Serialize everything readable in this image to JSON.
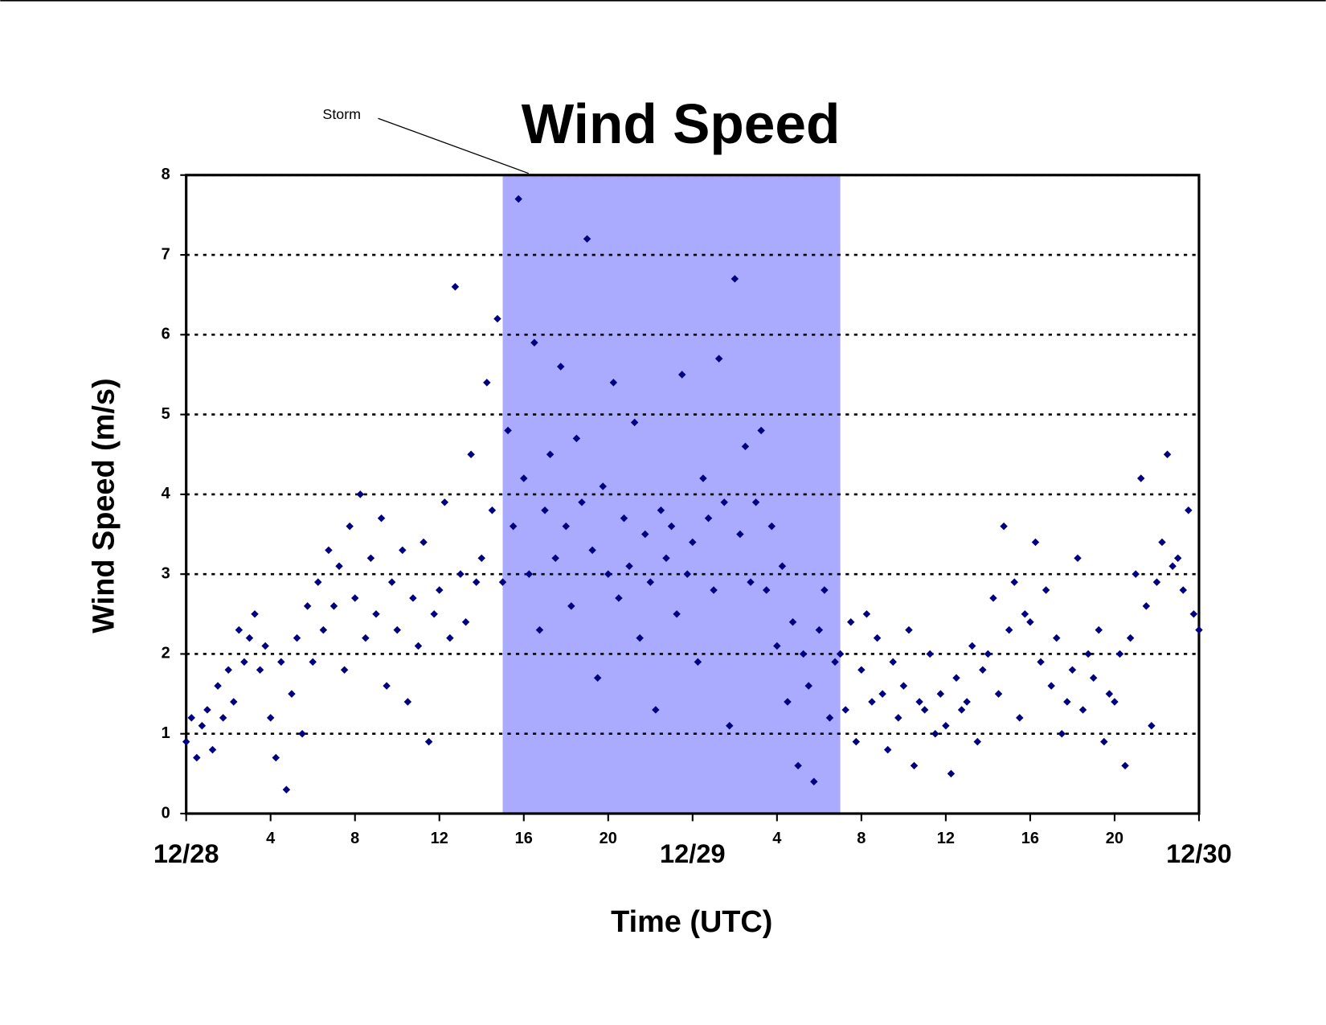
{
  "chart_data": {
    "type": "scatter",
    "title": "Wind Speed",
    "x_label": "Time (UTC)",
    "y_label": "Wind Speed (m/s)",
    "highlight": {
      "label": "Storm",
      "xlim": [
        15,
        31
      ],
      "color": "#aaaaff"
    },
    "color": "#000080",
    "xlim": [
      0,
      48
    ],
    "xticks": [
      {
        "value": 0,
        "label": "12/28"
      },
      4,
      8,
      12,
      16,
      20,
      {
        "value": 24,
        "label": "12/29"
      },
      {
        "value": 28,
        "label": "4"
      },
      {
        "value": 32,
        "label": "8"
      },
      {
        "value": 36,
        "label": "12"
      },
      {
        "value": 40,
        "label": "16"
      },
      {
        "value": 44,
        "label": "20"
      },
      {
        "value": 48,
        "label": "12/30"
      }
    ],
    "ylim": [
      0,
      8
    ],
    "yticks": [
      0,
      1,
      2,
      3,
      4,
      5,
      6,
      7,
      8
    ],
    "grid": true,
    "x": [
      0,
      0.25,
      0.5,
      0.75,
      1,
      1.25,
      1.5,
      1.75,
      2,
      2.25,
      2.5,
      2.75,
      3,
      3.25,
      3.5,
      3.75,
      4,
      4.25,
      4.5,
      4.75,
      5,
      5.25,
      5.5,
      5.75,
      6,
      6.25,
      6.5,
      6.75,
      7,
      7.25,
      7.5,
      7.75,
      8,
      8.25,
      8.5,
      8.75,
      9,
      9.25,
      9.5,
      9.75,
      10,
      10.25,
      10.5,
      10.75,
      11,
      11.25,
      11.5,
      11.75,
      12,
      12.25,
      12.5,
      12.75,
      13,
      13.25,
      13.5,
      13.75,
      14,
      14.25,
      14.5,
      14.75,
      15,
      15.25,
      15.5,
      15.75,
      16,
      16.25,
      16.5,
      16.75,
      17,
      17.25,
      17.5,
      17.75,
      18,
      18.25,
      18.5,
      18.75,
      19,
      19.25,
      19.5,
      19.75,
      20,
      20.25,
      20.5,
      20.75,
      21,
      21.25,
      21.5,
      21.75,
      22,
      22.25,
      22.5,
      22.75,
      23,
      23.25,
      23.5,
      23.75,
      24,
      24.25,
      24.5,
      24.75,
      25,
      25.25,
      25.5,
      25.75,
      26,
      26.25,
      26.5,
      26.75,
      27,
      27.25,
      27.5,
      27.75,
      28,
      28.25,
      28.5,
      28.75,
      29,
      29.25,
      29.5,
      29.75,
      30,
      30.25,
      30.5,
      30.75,
      31,
      31.25,
      31.5,
      31.75,
      32,
      32.25,
      32.5,
      32.75,
      33,
      33.25,
      33.5,
      33.75,
      34,
      34.25,
      34.5,
      34.75,
      35,
      35.25,
      35.5,
      35.75,
      36,
      36.25,
      36.5,
      36.75,
      37,
      37.25,
      37.5,
      37.75,
      38,
      38.25,
      38.5,
      38.75,
      39,
      39.25,
      39.5,
      39.75,
      40,
      40.25,
      40.5,
      40.75,
      41,
      41.25,
      41.5,
      41.75,
      42,
      42.25,
      42.5,
      42.75,
      43,
      43.25,
      43.5,
      43.75,
      44,
      44.25,
      44.5,
      44.75,
      45,
      45.25,
      45.5,
      45.75,
      46,
      46.25,
      46.5,
      46.75,
      47,
      47.25,
      47.5,
      47.75,
      48
    ],
    "values": [
      0.9,
      1.2,
      0.7,
      1.1,
      1.3,
      0.8,
      1.6,
      1.2,
      1.8,
      1.4,
      2.3,
      1.9,
      2.2,
      2.5,
      1.8,
      2.1,
      1.2,
      0.7,
      1.9,
      0.3,
      1.5,
      2.2,
      1.0,
      2.6,
      1.9,
      2.9,
      2.3,
      3.3,
      2.6,
      3.1,
      1.8,
      3.6,
      2.7,
      4.0,
      2.2,
      3.2,
      2.5,
      3.7,
      1.6,
      2.9,
      2.3,
      3.3,
      1.4,
      2.7,
      2.1,
      3.4,
      0.9,
      2.5,
      2.8,
      3.9,
      2.2,
      6.6,
      3.0,
      2.4,
      4.5,
      2.9,
      3.2,
      5.4,
      3.8,
      6.2,
      2.9,
      4.8,
      3.6,
      7.7,
      4.2,
      3.0,
      5.9,
      2.3,
      3.8,
      4.5,
      3.2,
      5.6,
      3.6,
      2.6,
      4.7,
      3.9,
      7.2,
      3.3,
      1.7,
      4.1,
      3.0,
      5.4,
      2.7,
      3.7,
      3.1,
      4.9,
      2.2,
      3.5,
      2.9,
      1.3,
      3.8,
      3.2,
      3.6,
      2.5,
      5.5,
      3.0,
      3.4,
      1.9,
      4.2,
      3.7,
      2.8,
      5.7,
      3.9,
      1.1,
      6.7,
      3.5,
      4.6,
      2.9,
      3.9,
      4.8,
      2.8,
      3.6,
      2.1,
      3.1,
      1.4,
      2.4,
      0.6,
      2.0,
      1.6,
      0.4,
      2.3,
      2.8,
      1.2,
      1.9,
      2.0,
      1.3,
      2.4,
      0.9,
      1.8,
      2.5,
      1.4,
      2.2,
      1.5,
      0.8,
      1.9,
      1.2,
      1.6,
      2.3,
      0.6,
      1.4,
      1.3,
      2.0,
      1.0,
      1.5,
      1.1,
      0.5,
      1.7,
      1.3,
      1.4,
      2.1,
      0.9,
      1.8,
      2.0,
      2.7,
      1.5,
      3.6,
      2.3,
      2.9,
      1.2,
      2.5,
      2.4,
      3.4,
      1.9,
      2.8,
      1.6,
      2.2,
      1.0,
      1.4,
      1.8,
      3.2,
      1.3,
      2.0,
      1.7,
      2.3,
      0.9,
      1.5,
      1.4,
      2.0,
      0.6,
      2.2,
      3.0,
      4.2,
      2.6,
      1.1,
      2.9,
      3.4,
      4.5,
      3.1,
      3.2,
      2.8,
      3.8,
      2.5,
      2.3
    ]
  }
}
